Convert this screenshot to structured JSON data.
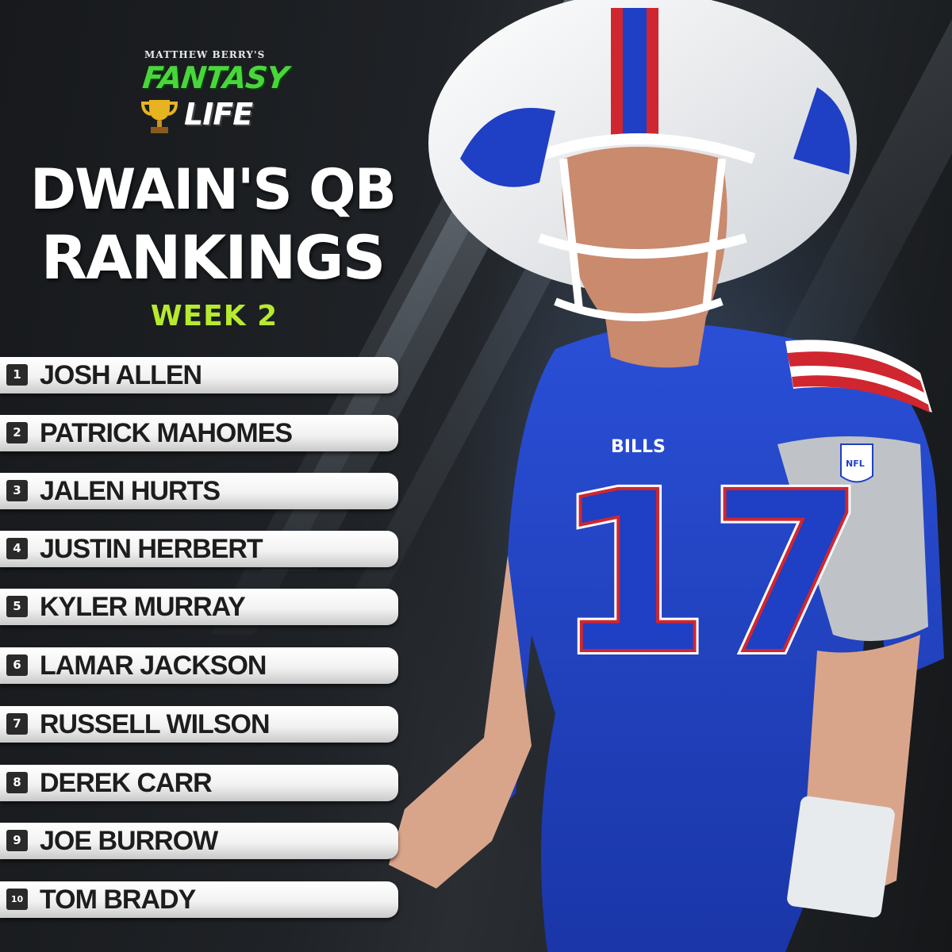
{
  "logo": {
    "top_text": "MATTHEW BERRY'S",
    "fantasy": "FANTASY",
    "life": "LIFE"
  },
  "title_line1": "DWAIN'S QB",
  "title_line2": "RANKINGS",
  "week": "WEEK  2",
  "player": {
    "jersey_number": "17",
    "jersey_text": "BILLS",
    "sleeve_patch": "NFL"
  },
  "rankings": [
    {
      "rank": "1",
      "name": "JOSH ALLEN"
    },
    {
      "rank": "2",
      "name": "PATRICK MAHOMES"
    },
    {
      "rank": "3",
      "name": "JALEN HURTS"
    },
    {
      "rank": "4",
      "name": "JUSTIN HERBERT"
    },
    {
      "rank": "5",
      "name": "KYLER MURRAY"
    },
    {
      "rank": "6",
      "name": "LAMAR JACKSON"
    },
    {
      "rank": "7",
      "name": "RUSSELL WILSON"
    },
    {
      "rank": "8",
      "name": "DEREK CARR"
    },
    {
      "rank": "9",
      "name": "JOE BURROW"
    },
    {
      "rank": "10",
      "name": "TOM BRADY"
    }
  ],
  "colors": {
    "brand_green": "#49d63a",
    "week_green": "#b7ea2e",
    "bills_blue": "#1f3fc4",
    "bills_red": "#d0262f"
  }
}
